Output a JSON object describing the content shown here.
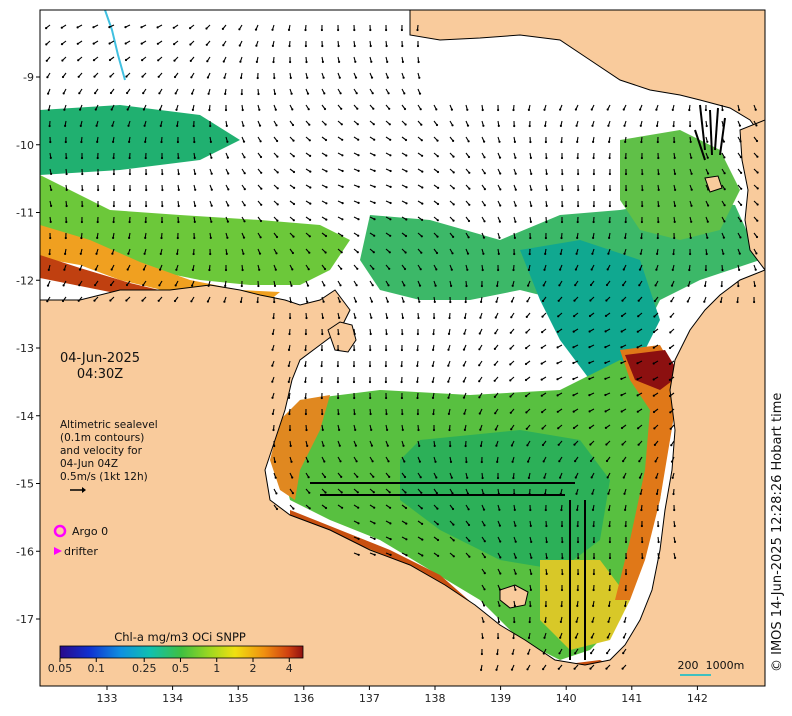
{
  "map": {
    "date": "04-Jun-2025",
    "time": "04:30Z",
    "altimetry_lines": [
      "Altimetric sealevel",
      "(0.1m contours)",
      "and velocity for",
      "04-Jun 04Z",
      "0.5m/s (1kt 12h)"
    ],
    "legend": {
      "argo_label": "Argo 0",
      "drifter_label": "drifter"
    },
    "colorbar": {
      "title": "Chl-a mg/m3 OCi SNPP",
      "ticks": [
        "0.05",
        "0.1",
        "0.25",
        "0.5",
        "1",
        "2",
        "4"
      ]
    },
    "scale_bar": {
      "label_km": "200",
      "label_depth": "1000m"
    },
    "credit": "© IMOS 14-Jun-2025 12:28:26 Hobart time",
    "lon_ticks": [
      "133",
      "134",
      "135",
      "136",
      "137",
      "138",
      "139",
      "140",
      "141",
      "142"
    ],
    "lat_ticks": [
      "-9",
      "-10",
      "-11",
      "-12",
      "-13",
      "-14",
      "-15",
      "-16",
      "-17"
    ],
    "colors": {
      "land": "#f9cb9c",
      "ocean": "#ffffff",
      "argo": "#ff00ff",
      "drifter": "#ff00ff",
      "scale_bar": "#40c0c0",
      "arrows": "#000000"
    }
  }
}
